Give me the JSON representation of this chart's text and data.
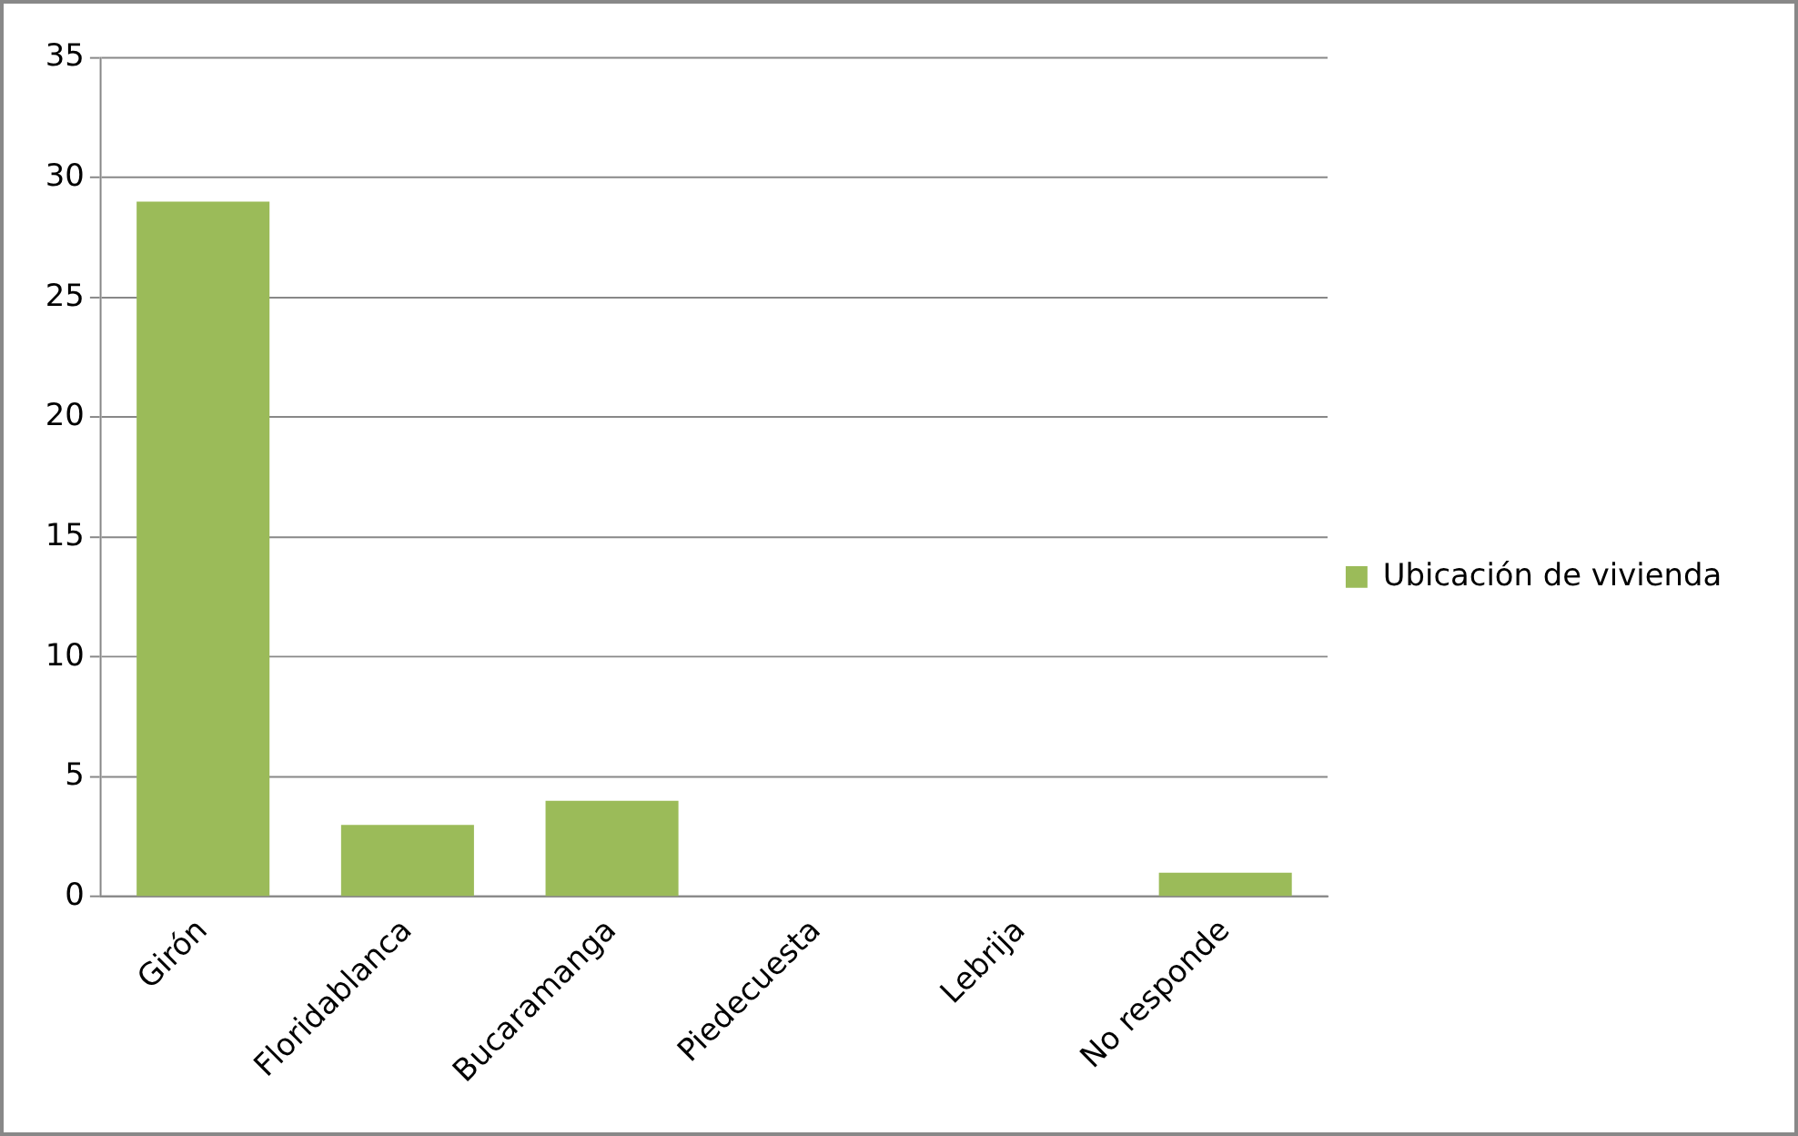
{
  "chart_data": {
    "type": "bar",
    "categories": [
      "Girón",
      "Floridablanca",
      "Bucaramanga",
      "Piedecuesta",
      "Lebrija",
      "No responde"
    ],
    "series": [
      {
        "name": "Ubicación de vivienda",
        "color": "#9bbb59",
        "values": [
          29,
          3,
          4,
          0,
          0,
          1
        ]
      }
    ],
    "ylim": [
      0,
      35
    ],
    "yticks": [
      0,
      5,
      10,
      15,
      20,
      25,
      30,
      35
    ],
    "grid": "y",
    "legend": "right"
  }
}
